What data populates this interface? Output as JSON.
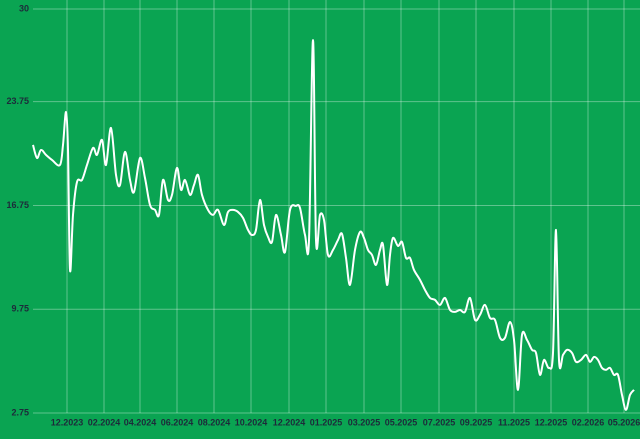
{
  "chart_data": {
    "type": "line",
    "x": [
      0,
      4,
      8,
      13,
      19,
      27,
      30,
      33,
      35,
      37,
      40,
      44,
      49,
      54,
      60,
      64,
      69,
      73,
      78,
      83,
      87,
      92,
      97,
      101,
      107,
      112,
      117,
      122,
      126,
      130,
      135,
      139,
      144,
      148,
      152,
      157,
      161,
      165,
      169,
      175,
      180,
      185,
      191,
      195,
      200,
      205,
      210,
      215,
      219,
      223,
      227,
      231,
      235,
      239,
      243,
      248,
      252,
      257,
      263,
      267,
      272,
      276,
      280,
      283,
      287,
      291,
      295,
      300,
      305,
      309,
      313,
      317,
      322,
      327,
      331,
      335,
      339,
      343,
      347,
      350,
      354,
      357,
      360,
      365,
      369,
      373,
      377,
      381,
      387,
      392,
      397,
      402,
      407,
      412,
      417,
      422,
      427,
      432,
      437,
      442,
      447,
      452,
      457,
      462,
      467,
      472,
      477,
      481,
      485,
      489,
      494,
      499,
      503,
      507,
      511,
      516,
      520,
      523,
      526,
      530,
      534,
      539,
      543,
      548,
      553,
      557,
      561,
      565,
      569,
      573,
      577,
      581,
      585,
      589,
      593,
      597,
      601
    ],
    "series": [
      {
        "color": "#ffffff",
        "values": [
          20.83,
          19.95,
          20.49,
          20.16,
          19.82,
          19.48,
          20.83,
          23.05,
          20.49,
          12.4,
          16.11,
          18.33,
          18.47,
          19.48,
          20.63,
          20.16,
          21.17,
          19.48,
          21.98,
          18.81,
          18.13,
          20.36,
          18.47,
          17.66,
          19.95,
          18.6,
          16.78,
          16.45,
          16.11,
          18.47,
          17.12,
          17.46,
          19.28,
          17.8,
          18.47,
          17.46,
          18.13,
          18.81,
          17.46,
          16.45,
          16.11,
          16.45,
          15.43,
          16.31,
          16.45,
          16.31,
          15.91,
          15.1,
          14.76,
          15.1,
          17.12,
          15.43,
          14.63,
          14.29,
          16.11,
          14.76,
          13.61,
          16.45,
          16.72,
          16.58,
          14.76,
          14.42,
          27.91,
          14.42,
          16.11,
          15.77,
          13.41,
          13.75,
          14.42,
          14.83,
          13.21,
          11.39,
          13.75,
          14.96,
          14.56,
          13.75,
          13.41,
          12.74,
          13.75,
          14.09,
          11.39,
          13.41,
          14.56,
          14.02,
          14.29,
          13.21,
          13.21,
          12.4,
          11.73,
          11.05,
          10.51,
          10.38,
          10.04,
          10.51,
          9.7,
          9.57,
          9.7,
          9.57,
          10.51,
          9.03,
          9.37,
          10.04,
          9.16,
          9.03,
          7.82,
          7.82,
          8.89,
          7.68,
          4.31,
          8.02,
          7.68,
          7.01,
          6.8,
          5.32,
          6.33,
          5.79,
          6.8,
          15.1,
          6.33,
          6.67,
          7.01,
          6.8,
          6.2,
          6.33,
          6.67,
          6.2,
          6.53,
          6.33,
          5.79,
          5.66,
          5.79,
          5.32,
          5.32,
          3.97,
          2.96,
          3.97,
          4.31
        ]
      }
    ],
    "xlim": [
      0,
      603
    ],
    "xticks": [
      {
        "value": 34,
        "label": "12.2023"
      },
      {
        "value": 71,
        "label": "02.2024"
      },
      {
        "value": 107,
        "label": "04.2024"
      },
      {
        "value": 144,
        "label": "06.2024"
      },
      {
        "value": 181,
        "label": "08.2024"
      },
      {
        "value": 218,
        "label": "10.2024"
      },
      {
        "value": 256,
        "label": "12.2024"
      },
      {
        "value": 293,
        "label": "01.2025"
      },
      {
        "value": 331,
        "label": "03.2025"
      },
      {
        "value": 368,
        "label": "05.2025"
      },
      {
        "value": 406,
        "label": "07.2025"
      },
      {
        "value": 443,
        "label": "09.2025"
      },
      {
        "value": 481,
        "label": "11.2025"
      },
      {
        "value": 518,
        "label": "12.2025"
      },
      {
        "value": 555,
        "label": "02.2026"
      },
      {
        "value": 591,
        "label": "05.2026"
      }
    ],
    "ylim": [
      2.75,
      30
    ],
    "yticks": [
      2.75,
      9.75,
      16.75,
      23.75,
      30
    ],
    "grid": true
  }
}
